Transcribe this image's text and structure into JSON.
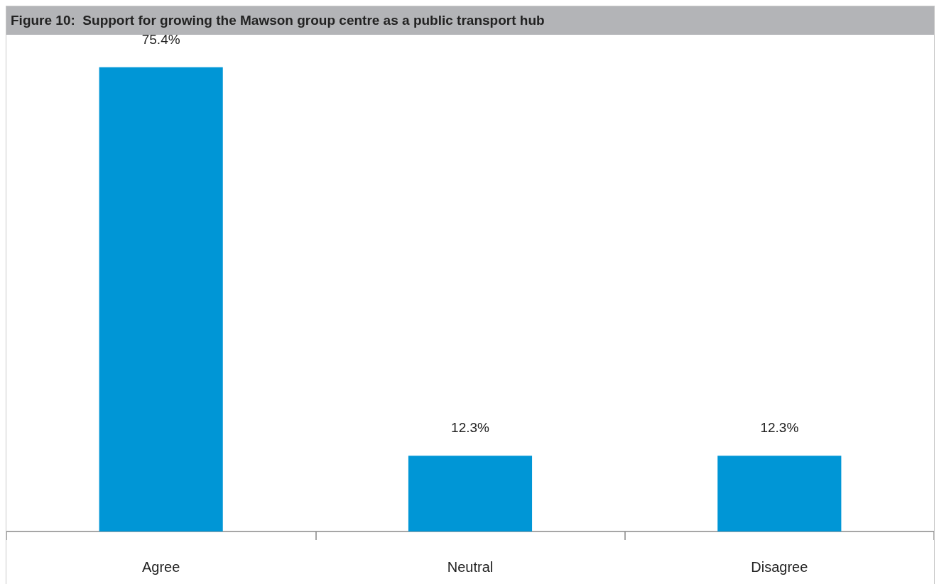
{
  "chart_data": {
    "type": "bar",
    "title": "Figure 10:  Support for growing the Mawson group centre as a public transport hub",
    "categories": [
      "Agree",
      "Neutral",
      "Disagree"
    ],
    "values": [
      75.4,
      12.3,
      12.3
    ],
    "value_labels": [
      "75.4%",
      "12.3%",
      "12.3%"
    ],
    "color": "#0096d6"
  }
}
